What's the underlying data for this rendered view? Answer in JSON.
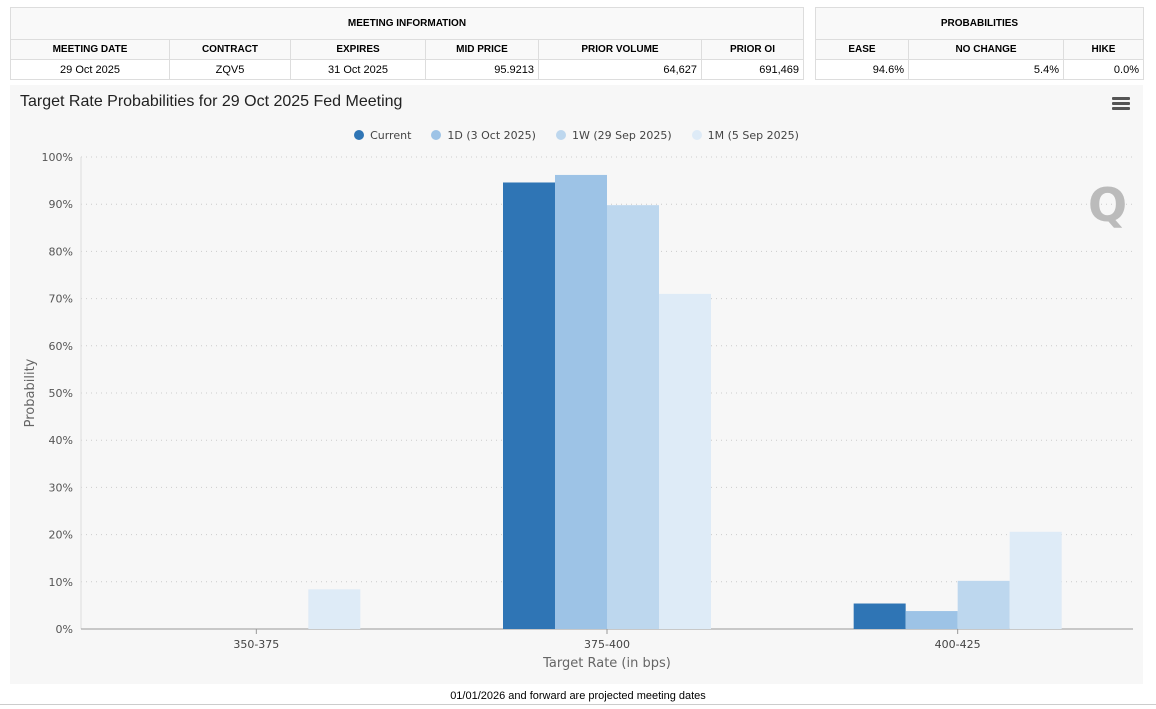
{
  "meeting_info": {
    "title": "MEETING INFORMATION",
    "headers": [
      "MEETING DATE",
      "CONTRACT",
      "EXPIRES",
      "MID PRICE",
      "PRIOR VOLUME",
      "PRIOR OI"
    ],
    "values": [
      "29 Oct 2025",
      "ZQV5",
      "31 Oct 2025",
      "95.9213",
      "64,627",
      "691,469"
    ]
  },
  "probabilities": {
    "title": "PROBABILITIES",
    "headers": [
      "EASE",
      "NO CHANGE",
      "HIKE"
    ],
    "values": [
      "94.6%",
      "5.4%",
      "0.0%"
    ]
  },
  "footer": "01/01/2026 and forward are projected meeting dates",
  "chart_data": {
    "type": "bar",
    "title": "Target Rate Probabilities for 29 Oct 2025 Fed Meeting",
    "xlabel": "Target Rate (in bps)",
    "ylabel": "Probability",
    "categories": [
      "350-375",
      "375-400",
      "400-425"
    ],
    "ylim": [
      0,
      100
    ],
    "yticks": [
      "0%",
      "10%",
      "20%",
      "30%",
      "40%",
      "50%",
      "60%",
      "70%",
      "80%",
      "90%",
      "100%"
    ],
    "legend_position": "top-center",
    "grid": true,
    "series": [
      {
        "name": "Current",
        "color": "#2f75b5",
        "values": [
          0,
          94.6,
          5.4
        ]
      },
      {
        "name": "1D (3 Oct 2025)",
        "color": "#9dc3e6",
        "values": [
          0,
          96.2,
          3.8
        ]
      },
      {
        "name": "1W (29 Sep 2025)",
        "color": "#bdd7ee",
        "values": [
          0,
          89.8,
          10.2
        ]
      },
      {
        "name": "1M (5 Sep 2025)",
        "color": "#deebf7",
        "values": [
          8.4,
          71.0,
          20.6
        ]
      }
    ]
  }
}
